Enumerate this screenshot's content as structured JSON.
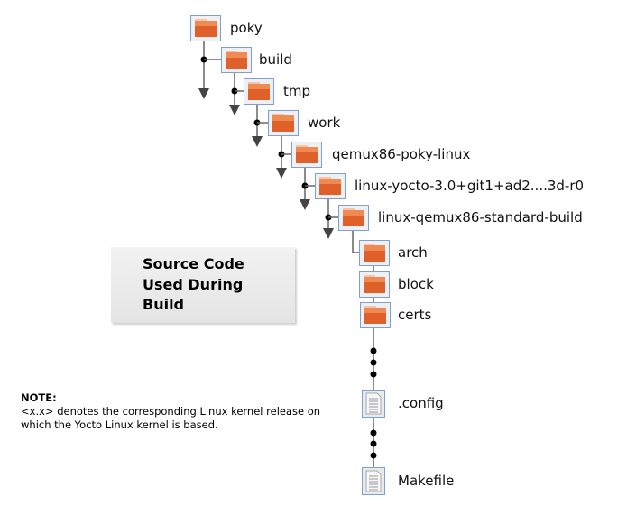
{
  "tree": {
    "folders": [
      "poky",
      "build",
      "tmp",
      "work",
      "qemux86-poky-linux",
      "linux-yocto-3.0+git1+ad2....3d-r0",
      "linux-qemux86-standard-build",
      "arch",
      "block",
      "certs"
    ],
    "files": [
      ".config",
      "Makefile"
    ]
  },
  "source_box": {
    "text": "Source Code Used During Build"
  },
  "note": {
    "title": "NOTE:",
    "text": "<x.x> denotes the corresponding Linux kernel release on which the Yocto Linux kernel is based."
  },
  "colors": {
    "folder": "#e0602a",
    "icon_border": "#7f9fd0",
    "line": "#666666"
  }
}
